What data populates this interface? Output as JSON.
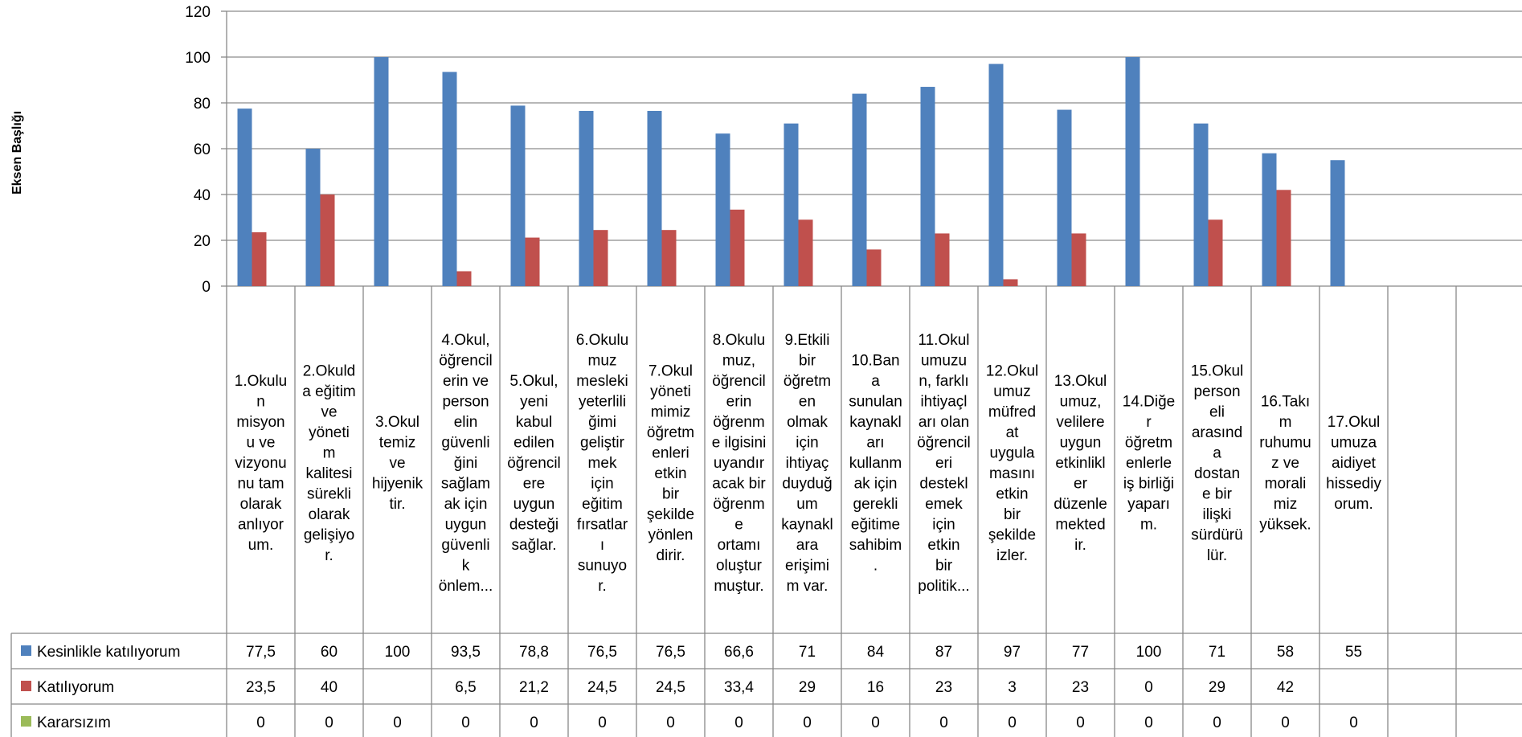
{
  "chart_data": {
    "type": "bar",
    "ylabel": "Eksen Başlığı",
    "ylim": [
      0,
      120
    ],
    "yticks": [
      0,
      20,
      40,
      60,
      80,
      100,
      120
    ],
    "grid": true,
    "legend": "bottom-left (data table)",
    "categories": [
      [
        "1.Okulu",
        "n",
        "misyon",
        "u ve",
        "vizyonu",
        "nu tam",
        "olarak",
        "anlıyor",
        "um."
      ],
      [
        "2.Okuld",
        "a eğitim",
        "ve",
        "yöneti",
        "m",
        "kalitesi",
        "sürekli",
        "olarak",
        "gelişiyo",
        "r."
      ],
      [
        "3.Okul",
        "temiz",
        "ve",
        "hijyenik",
        "tir."
      ],
      [
        "4.Okul,",
        "öğrencil",
        "erin ve",
        "person",
        "elin",
        "güvenli",
        "ğini",
        "sağlam",
        "ak için",
        "uygun",
        "güvenli",
        "k",
        "önlem..."
      ],
      [
        "5.Okul,",
        "yeni",
        "kabul",
        "edilen",
        "öğrencil",
        "ere",
        "uygun",
        "desteği",
        "sağlar."
      ],
      [
        "6.Okulu",
        "muz",
        "mesleki",
        "yeterlili",
        "ğimi",
        "geliştir",
        "mek",
        "için",
        "eğitim",
        "fırsatlar",
        "ı",
        "sunuyo",
        "r."
      ],
      [
        "7.Okul",
        "yöneti",
        "mimiz",
        "öğretm",
        "enleri",
        "etkin",
        "bir",
        "şekilde",
        "yönlen",
        "dirir."
      ],
      [
        "8.Okulu",
        "muz,",
        "öğrencil",
        "erin",
        "öğrenm",
        "e ilgisini",
        "uyandır",
        "acak bir",
        "öğrenm",
        "e",
        "ortamı",
        "oluştur",
        "muştur."
      ],
      [
        "9.Etkili",
        "bir",
        "öğretm",
        "en",
        "olmak",
        "için",
        "ihtiyaç",
        "duyduğ",
        "um",
        "kaynakl",
        "ara",
        "erişimi",
        "m var."
      ],
      [
        "10.Ban",
        "a",
        "sunulan",
        "kaynakl",
        "arı",
        "kullanm",
        "ak için",
        "gerekli",
        "eğitime",
        "sahibim",
        "."
      ],
      [
        "11.Okul",
        "umuzu",
        "n, farklı",
        "ihtiyaçl",
        "arı olan",
        "öğrencil",
        "eri",
        "destekl",
        "emek",
        "için",
        "etkin",
        "bir",
        "politik..."
      ],
      [
        "12.Okul",
        "umuz",
        "müfred",
        "at",
        "uygula",
        "masını",
        "etkin",
        "bir",
        "şekilde",
        "izler."
      ],
      [
        "13.Okul",
        "umuz,",
        "velilere",
        "uygun",
        "etkinlikl",
        "er",
        "düzenle",
        "mekted",
        "ir."
      ],
      [
        "14.Diğe",
        "r",
        "öğretm",
        "enlerle",
        "iş birliği",
        "yaparı",
        "m."
      ],
      [
        "15.Okul",
        "person",
        "eli",
        "arasınd",
        "a",
        "dostan",
        "e bir",
        "ilişki",
        "sürdürü",
        "lür."
      ],
      [
        "16.Takı",
        "m",
        "ruhumu",
        "z ve",
        "morali",
        "miz",
        "yüksek."
      ],
      [
        "17.Okul",
        "umuza",
        "aidiyet",
        "hissediy",
        "orum."
      ],
      [],
      []
    ],
    "series": [
      {
        "name": "Kesinlikle katılıyorum",
        "color": "#4f81bd",
        "values": [
          77.5,
          60,
          100,
          93.5,
          78.8,
          76.5,
          76.5,
          66.6,
          71,
          84,
          87,
          97,
          77,
          100,
          71,
          58,
          55,
          null,
          null
        ],
        "labels": [
          "77,5",
          "60",
          "100",
          "93,5",
          "78,8",
          "76,5",
          "76,5",
          "66,6",
          "71",
          "84",
          "87",
          "97",
          "77",
          "100",
          "71",
          "58",
          "55",
          "",
          ""
        ]
      },
      {
        "name": "Katılıyorum",
        "color": "#c0504d",
        "values": [
          23.5,
          40,
          null,
          6.5,
          21.2,
          24.5,
          24.5,
          33.4,
          29,
          16,
          23,
          3,
          23,
          0,
          29,
          42,
          null,
          null,
          null
        ],
        "labels": [
          "23,5",
          "40",
          "",
          "6,5",
          "21,2",
          "24,5",
          "24,5",
          "33,4",
          "29",
          "16",
          "23",
          "3",
          "23",
          "0",
          "29",
          "42",
          "",
          "",
          ""
        ]
      },
      {
        "name": "Kararsızım",
        "color": "#9bbb59",
        "values": [
          0,
          0,
          0,
          0,
          0,
          0,
          0,
          0,
          0,
          0,
          0,
          0,
          0,
          0,
          0,
          0,
          0,
          null,
          null
        ],
        "labels": [
          "0",
          "0",
          "0",
          "0",
          "0",
          "0",
          "0",
          "0",
          "0",
          "0",
          "0",
          "0",
          "0",
          "0",
          "0",
          "0",
          "0",
          "",
          ""
        ]
      }
    ]
  }
}
